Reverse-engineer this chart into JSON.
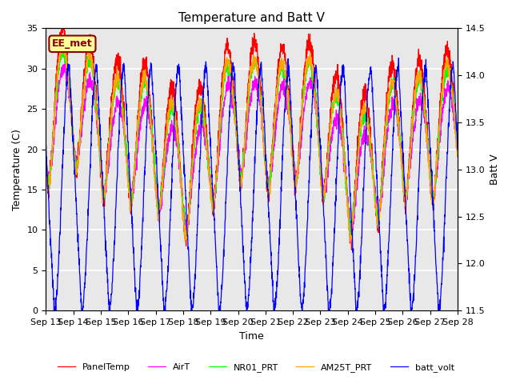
{
  "title": "Temperature and Batt V",
  "xlabel": "Time",
  "ylabel_left": "Temperature (C)",
  "ylabel_right": "Batt V",
  "annotation": "EE_met",
  "annotation_color": "#8B0000",
  "annotation_bg": "#FFFF99",
  "ylim_left": [
    0,
    35
  ],
  "ylim_right": [
    11.5,
    14.5
  ],
  "yticks_left": [
    0,
    5,
    10,
    15,
    20,
    25,
    30,
    35
  ],
  "yticks_right": [
    11.5,
    12.0,
    12.5,
    13.0,
    13.5,
    14.0,
    14.5
  ],
  "x_tick_labels": [
    "Sep 13",
    "Sep 14",
    "Sep 15",
    "Sep 16",
    "Sep 17",
    "Sep 18",
    "Sep 19",
    "Sep 20",
    "Sep 21",
    "Sep 22",
    "Sep 23",
    "Sep 24",
    "Sep 25",
    "Sep 26",
    "Sep 27",
    "Sep 28"
  ],
  "legend": [
    {
      "label": "PanelTemp",
      "color": "#FF0000"
    },
    {
      "label": "AirT",
      "color": "#FF00FF"
    },
    {
      "label": "NR01_PRT",
      "color": "#00FF00"
    },
    {
      "label": "AM25T_PRT",
      "color": "#FFA500"
    },
    {
      "label": "batt_volt",
      "color": "#0000FF"
    }
  ],
  "bg_color": "#E8E8E8",
  "grid_color": "#FFFFFF",
  "fig_bg": "#FFFFFF",
  "n_days": 15,
  "pts_per_day": 144,
  "temp_base": 20.0,
  "temp_amplitude": 7.0,
  "temp_noise": 0.4,
  "batt_high": 14.1,
  "batt_low": 11.5,
  "batt_noise": 0.04
}
